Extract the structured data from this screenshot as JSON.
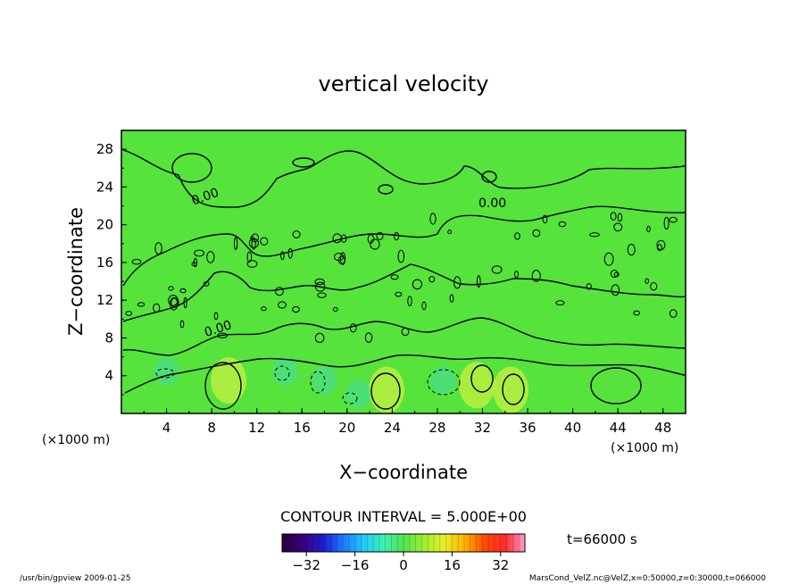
{
  "chart_data": {
    "type": "heatmap",
    "title": "vertical velocity",
    "xlabel": "X−coordinate",
    "ylabel": "Z−coordinate",
    "x_unit_label": "(×1000 m)",
    "y_unit_label": "(×1000 m)",
    "x_range": [
      0,
      50
    ],
    "y_range": [
      0,
      30
    ],
    "x_ticks": [
      "4",
      "8",
      "12",
      "16",
      "20",
      "24",
      "28",
      "32",
      "36",
      "40",
      "44",
      "48"
    ],
    "y_ticks": [
      "4",
      "8",
      "12",
      "16",
      "20",
      "24",
      "28"
    ],
    "contour_label": "0.00",
    "contour_interval_text": "CONTOUR INTERVAL = 5.000E+00",
    "time_text": "t=66000 s",
    "colorbar": {
      "min": -40,
      "max": 40,
      "ticks": [
        "−32",
        "−16",
        "0",
        "16",
        "32"
      ],
      "colors": [
        "#2a003c",
        "#3a007a",
        "#1c1cd0",
        "#1e78ff",
        "#1ec8ff",
        "#3cf0b4",
        "#50e650",
        "#a0ee30",
        "#e6f028",
        "#ffb400",
        "#ff4a00",
        "#ff2a2a",
        "#ff9ad2"
      ]
    },
    "field_colors": {
      "background": "#55e33c",
      "positive": "#c8f040",
      "negative": "#4ade8a"
    },
    "features": [
      {
        "x": 9.5,
        "z": 3.5,
        "sign": "positive"
      },
      {
        "x": 23.5,
        "z": 2.5,
        "sign": "positive"
      },
      {
        "x": 31.5,
        "z": 3.0,
        "sign": "positive"
      },
      {
        "x": 34.5,
        "z": 2.5,
        "sign": "positive"
      },
      {
        "x": 14.5,
        "z": 4.5,
        "sign": "negative"
      },
      {
        "x": 18.0,
        "z": 3.5,
        "sign": "negative"
      },
      {
        "x": 21.0,
        "z": 2.0,
        "sign": "negative"
      },
      {
        "x": 28.5,
        "z": 3.5,
        "sign": "negative"
      },
      {
        "x": 4.0,
        "z": 4.5,
        "sign": "negative"
      }
    ]
  },
  "footer": {
    "left": "/usr/bin/gpview   2009-01-25",
    "right": "MarsCond_VelZ.nc@VelZ,x=0:50000,z=0:30000,t=066000"
  }
}
